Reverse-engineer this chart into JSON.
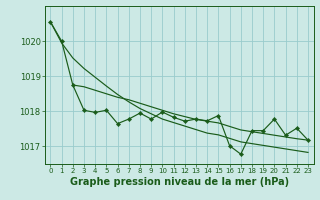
{
  "bg_color": "#cce9e5",
  "grid_color": "#99cccc",
  "line_color": "#1a5c1a",
  "xlabel": "Graphe pression niveau de la mer (hPa)",
  "xlabel_fontsize": 7,
  "yticks": [
    1017,
    1018,
    1019,
    1020
  ],
  "xticks": [
    0,
    1,
    2,
    3,
    4,
    5,
    6,
    7,
    8,
    9,
    10,
    11,
    12,
    13,
    14,
    15,
    16,
    17,
    18,
    19,
    20,
    21,
    22,
    23
  ],
  "xlim": [
    -0.5,
    23.5
  ],
  "ylim": [
    1016.5,
    1021.0
  ],
  "line1_x": [
    0,
    1,
    2,
    3,
    4,
    5,
    6,
    7,
    8,
    9,
    10,
    11,
    12,
    13,
    14,
    15,
    16,
    17,
    18,
    19,
    20,
    21,
    22,
    23
  ],
  "line1_y": [
    1020.55,
    1020.0,
    1018.75,
    1018.03,
    1017.97,
    1018.03,
    1017.65,
    1017.78,
    1017.95,
    1017.78,
    1017.98,
    1017.83,
    1017.72,
    1017.78,
    1017.73,
    1017.88,
    1017.02,
    1016.78,
    1017.45,
    1017.45,
    1017.78,
    1017.32,
    1017.52,
    1017.18
  ],
  "line2_x": [
    0,
    1,
    2,
    3,
    4,
    5,
    6,
    7,
    8,
    9,
    10,
    11,
    12,
    13,
    14,
    15,
    16,
    17,
    18,
    19,
    20,
    21,
    22,
    23
  ],
  "line2_y": [
    1020.55,
    1019.95,
    1019.52,
    1019.22,
    1018.97,
    1018.72,
    1018.48,
    1018.27,
    1018.08,
    1017.93,
    1017.78,
    1017.68,
    1017.58,
    1017.48,
    1017.38,
    1017.33,
    1017.23,
    1017.13,
    1017.08,
    1017.03,
    1016.98,
    1016.93,
    1016.88,
    1016.83
  ],
  "line3_x": [
    2,
    3,
    4,
    5,
    6,
    7,
    8,
    9,
    10,
    11,
    12,
    13,
    14,
    15,
    16,
    17,
    18,
    19,
    20,
    21,
    22,
    23
  ],
  "line3_y": [
    1018.75,
    1018.7,
    1018.6,
    1018.5,
    1018.4,
    1018.33,
    1018.23,
    1018.13,
    1018.03,
    1017.93,
    1017.85,
    1017.77,
    1017.72,
    1017.67,
    1017.57,
    1017.47,
    1017.42,
    1017.37,
    1017.32,
    1017.27,
    1017.22,
    1017.18
  ]
}
